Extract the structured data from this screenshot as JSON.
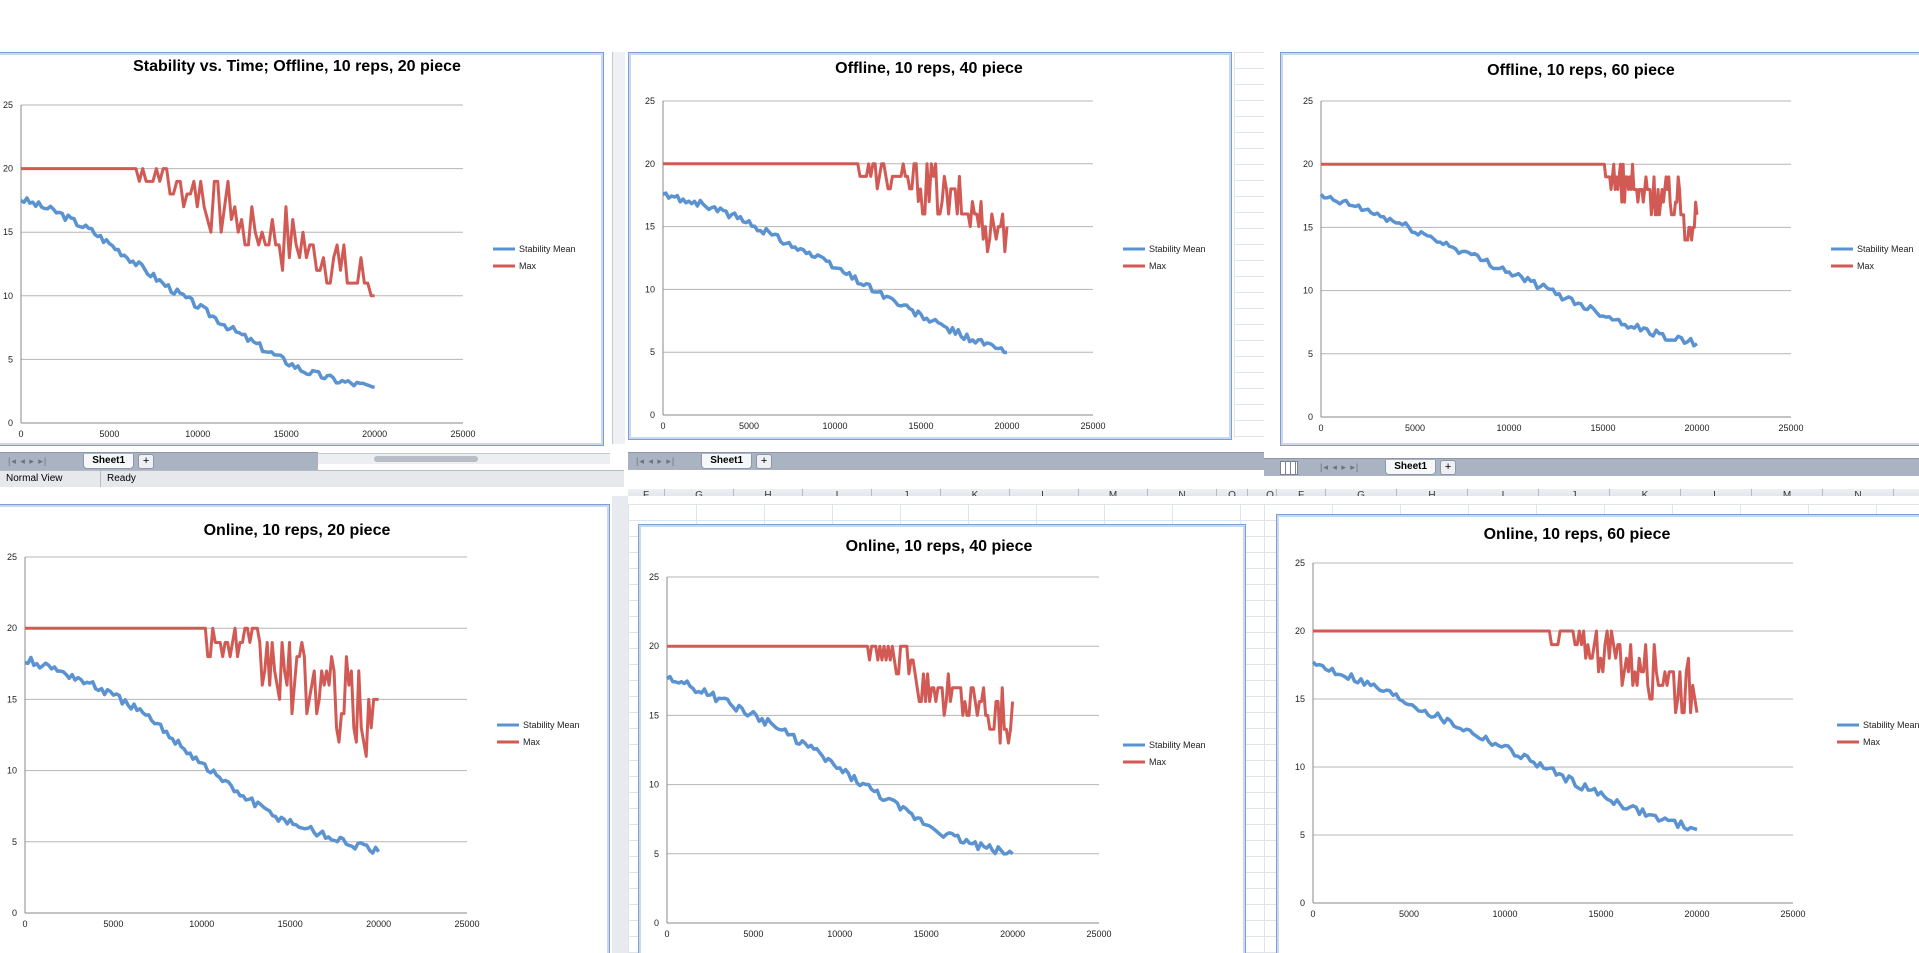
{
  "ui": {
    "sheet_tab": "Sheet1",
    "add_tab": "+",
    "tab_nav": "|◂ ◂ ▸ ▸|",
    "status_view": "Normal View",
    "status_ready": "Ready",
    "col_headers_mid": [
      "F",
      "G",
      "H",
      "I",
      "J",
      "K",
      "L",
      "M",
      "N"
    ],
    "col_headers_right": [
      "F",
      "G",
      "H",
      "I",
      "J",
      "K",
      "L",
      "M",
      "N"
    ],
    "col_header_sep": "O",
    "grid_icon": "grid-view-icon"
  },
  "chart_data": [
    {
      "type": "line",
      "title": "Stability vs. Time; Offline, 10 reps, 20 piece",
      "xlim": [
        0,
        25000
      ],
      "ylim": [
        0,
        25
      ],
      "xticks": [
        0,
        5000,
        10000,
        15000,
        20000,
        25000
      ],
      "yticks": [
        0,
        5,
        10,
        15,
        20,
        25
      ],
      "legend": "right",
      "series": [
        {
          "name": "Stability Mean",
          "color": "#5b93d1",
          "x": [
            0,
            2000,
            4000,
            6000,
            8000,
            10000,
            12000,
            14000,
            16000,
            18000,
            20000
          ],
          "y": [
            17.6,
            16.6,
            15.1,
            13.1,
            11.0,
            9.2,
            7.3,
            5.6,
            4.1,
            3.3,
            2.8
          ]
        },
        {
          "name": "Max",
          "color": "#d25a55",
          "flat": 20,
          "from": 6500,
          "to": 20000,
          "low": [
            19,
            17,
            15,
            13,
            12,
            11,
            9
          ],
          "high": [
            20,
            20,
            19,
            17,
            17,
            15,
            14
          ]
        }
      ]
    },
    {
      "type": "line",
      "title": "Offline, 10 reps, 40 piece",
      "xlim": [
        0,
        25000
      ],
      "ylim": [
        0,
        25
      ],
      "xticks": [
        0,
        5000,
        10000,
        15000,
        20000,
        25000
      ],
      "yticks": [
        0,
        5,
        10,
        15,
        20,
        25
      ],
      "legend": "right",
      "series": [
        {
          "name": "Stability Mean",
          "color": "#5b93d1",
          "x": [
            0,
            2000,
            4000,
            6000,
            8000,
            10000,
            12000,
            14000,
            16000,
            18000,
            20000
          ],
          "y": [
            17.5,
            16.9,
            15.9,
            14.6,
            13.2,
            11.8,
            10.2,
            8.6,
            7.2,
            6.0,
            5.0
          ]
        },
        {
          "name": "Max",
          "color": "#d25a55",
          "flat": 20,
          "from": 11200,
          "to": 20000,
          "low": [
            19,
            18,
            17,
            16,
            15,
            14,
            13
          ],
          "high": [
            20,
            20,
            20,
            20,
            19,
            18,
            17
          ]
        }
      ]
    },
    {
      "type": "line",
      "title": "Offline, 10 reps, 60 piece",
      "xlim": [
        0,
        25000
      ],
      "ylim": [
        0,
        25
      ],
      "xticks": [
        0,
        5000,
        10000,
        15000,
        20000,
        25000
      ],
      "yticks": [
        0,
        5,
        10,
        15,
        20,
        25
      ],
      "legend": "right",
      "series": [
        {
          "name": "Stability Mean",
          "color": "#5b93d1",
          "x": [
            0,
            2000,
            4000,
            6000,
            8000,
            10000,
            12000,
            14000,
            16000,
            18000,
            20000
          ],
          "y": [
            17.4,
            16.6,
            15.4,
            14.1,
            12.8,
            11.5,
            10.1,
            8.8,
            7.5,
            6.5,
            5.8
          ]
        },
        {
          "name": "Max",
          "color": "#d25a55",
          "flat": 20,
          "from": 15000,
          "to": 20000,
          "low": [
            18,
            17,
            16,
            16,
            15,
            14
          ],
          "high": [
            20,
            20,
            19,
            19,
            19,
            18
          ]
        }
      ]
    },
    {
      "type": "line",
      "title": "Online, 10 reps, 20 piece",
      "xlim": [
        0,
        25000
      ],
      "ylim": [
        0,
        25
      ],
      "xticks": [
        0,
        5000,
        10000,
        15000,
        20000,
        25000
      ],
      "yticks": [
        0,
        5,
        10,
        15,
        20,
        25
      ],
      "legend": "right",
      "series": [
        {
          "name": "Stability Mean",
          "color": "#5b93d1",
          "x": [
            0,
            2000,
            4000,
            6000,
            8000,
            10000,
            12000,
            14000,
            16000,
            18000,
            20000
          ],
          "y": [
            17.8,
            17.0,
            15.9,
            14.6,
            12.7,
            10.5,
            8.5,
            6.9,
            5.9,
            5.0,
            4.3
          ]
        },
        {
          "name": "Max",
          "color": "#d25a55",
          "flat": 20,
          "from": 10200,
          "to": 20000,
          "low": [
            18,
            17,
            15,
            14,
            13,
            12,
            11
          ],
          "high": [
            20,
            20,
            20,
            19,
            19,
            18,
            17
          ]
        }
      ]
    },
    {
      "type": "line",
      "title": "Online, 10 reps, 40 piece",
      "xlim": [
        0,
        25000
      ],
      "ylim": [
        0,
        25
      ],
      "xticks": [
        0,
        5000,
        10000,
        15000,
        20000,
        25000
      ],
      "yticks": [
        0,
        5,
        10,
        15,
        20,
        25
      ],
      "legend": "right",
      "series": [
        {
          "name": "Stability Mean",
          "color": "#5b93d1",
          "x": [
            0,
            2000,
            4000,
            6000,
            8000,
            10000,
            12000,
            14000,
            16000,
            18000,
            20000
          ],
          "y": [
            17.7,
            16.8,
            15.6,
            14.4,
            12.9,
            11.1,
            9.5,
            7.9,
            6.5,
            5.6,
            5.0
          ]
        },
        {
          "name": "Max",
          "color": "#d25a55",
          "flat": 20,
          "from": 11600,
          "to": 20000,
          "low": [
            19,
            18,
            16,
            15,
            14,
            13
          ],
          "high": [
            20,
            20,
            19,
            18,
            18,
            17
          ]
        }
      ]
    },
    {
      "type": "line",
      "title": "Online, 10 reps, 60 piece",
      "xlim": [
        0,
        25000
      ],
      "ylim": [
        0,
        25
      ],
      "xticks": [
        0,
        5000,
        10000,
        15000,
        20000,
        25000
      ],
      "yticks": [
        0,
        5,
        10,
        15,
        20,
        25
      ],
      "legend": "right",
      "series": [
        {
          "name": "Stability Mean",
          "color": "#5b93d1",
          "x": [
            0,
            2000,
            4000,
            6000,
            8000,
            10000,
            12000,
            14000,
            16000,
            18000,
            20000
          ],
          "y": [
            17.6,
            16.6,
            15.4,
            14.0,
            12.7,
            11.4,
            10.0,
            8.6,
            7.3,
            6.2,
            5.4
          ]
        },
        {
          "name": "Max",
          "color": "#d25a55",
          "flat": 20,
          "from": 12200,
          "to": 20000,
          "low": [
            19,
            18,
            17,
            16,
            15,
            14
          ],
          "high": [
            20,
            20,
            20,
            19,
            19,
            18
          ]
        }
      ]
    }
  ]
}
